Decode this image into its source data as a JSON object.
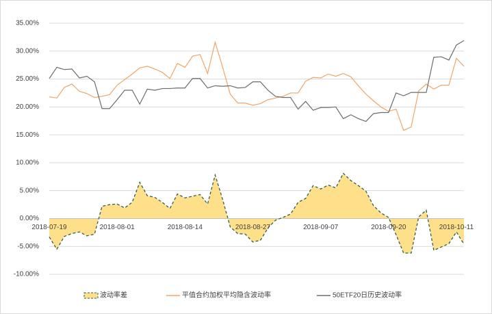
{
  "chart_data": {
    "type": "line",
    "categories": [
      "2018-07-19",
      null,
      null,
      null,
      null,
      null,
      null,
      null,
      null,
      "2018-08-01",
      null,
      null,
      null,
      null,
      null,
      null,
      null,
      null,
      "2018-08-14",
      null,
      null,
      null,
      null,
      null,
      null,
      null,
      null,
      "2018-08-27",
      null,
      null,
      null,
      null,
      null,
      null,
      null,
      null,
      "2018-09-07",
      null,
      null,
      null,
      null,
      null,
      null,
      null,
      null,
      "2018-09-20",
      null,
      null,
      null,
      null,
      null,
      null,
      null,
      null,
      "2018-10-11",
      null
    ],
    "series": [
      {
        "name": "波动率差",
        "type": "area",
        "color": "#ffe08a",
        "line_color": "#2f5f4f",
        "values": [
          -3.3,
          -5.5,
          -3.2,
          -2.7,
          -2.4,
          -3.1,
          -2.8,
          2.2,
          2.5,
          2.6,
          1.9,
          2.9,
          6.5,
          4.1,
          3.8,
          2.9,
          1.8,
          4.4,
          3.7,
          4.0,
          4.3,
          2.6,
          7.8,
          3.4,
          -1.5,
          -2.7,
          -2.8,
          -4.2,
          -3.9,
          -1.7,
          -0.3,
          0.2,
          0.8,
          2.9,
          3.6,
          5.9,
          5.3,
          6.0,
          5.5,
          8.1,
          6.8,
          5.9,
          4.9,
          2.3,
          1.0,
          0.2,
          -2.9,
          -6.2,
          -6.2,
          0.3,
          1.5,
          -5.7,
          -5.1,
          -4.5,
          -2.4,
          -4.6
        ]
      },
      {
        "name": "平值合约加权平均隐含波动率",
        "type": "line",
        "color": "#f0a565",
        "values": [
          21.8,
          21.6,
          23.5,
          24.1,
          22.8,
          22.4,
          21.7,
          21.9,
          22.2,
          23.9,
          24.9,
          25.9,
          27.0,
          27.3,
          26.8,
          26.2,
          25.1,
          27.8,
          27.1,
          29.1,
          29.4,
          26.0,
          31.6,
          27.1,
          22.3,
          20.7,
          20.7,
          20.3,
          20.6,
          21.3,
          21.6,
          21.9,
          22.5,
          22.5,
          24.6,
          25.3,
          25.2,
          25.9,
          25.5,
          26.0,
          25.4,
          23.8,
          22.3,
          21.1,
          20.0,
          19.2,
          19.6,
          15.8,
          16.4,
          22.9,
          24.1,
          23.2,
          23.9,
          23.9,
          28.7,
          27.3
        ]
      },
      {
        "name": "50ETF20日历史波动率",
        "type": "line",
        "color": "#6b6b6b",
        "values": [
          25.1,
          27.1,
          26.7,
          26.8,
          25.2,
          25.5,
          24.5,
          19.7,
          19.7,
          21.3,
          23.0,
          23.0,
          20.5,
          23.2,
          23.0,
          23.3,
          23.3,
          23.4,
          23.4,
          25.1,
          25.1,
          23.4,
          23.8,
          23.7,
          23.8,
          23.4,
          23.5,
          24.5,
          24.5,
          23.0,
          21.9,
          21.7,
          21.7,
          19.6,
          21.0,
          19.4,
          19.9,
          19.9,
          20.0,
          17.9,
          18.6,
          17.9,
          17.4,
          18.8,
          19.0,
          19.0,
          22.5,
          22.0,
          22.6,
          22.6,
          22.6,
          28.9,
          29.0,
          28.4,
          31.1,
          31.9
        ]
      }
    ],
    "ylim": [
      -10,
      35
    ],
    "yticks": [
      {
        "value": -10,
        "label": "-10.00%"
      },
      {
        "value": -5,
        "label": "-5.00%"
      },
      {
        "value": 0,
        "label": "0.00%"
      },
      {
        "value": 5,
        "label": "5.00%"
      },
      {
        "value": 10,
        "label": "10.00%"
      },
      {
        "value": 15,
        "label": "15.00%"
      },
      {
        "value": 20,
        "label": "20.00%"
      },
      {
        "value": 25,
        "label": "25.00%"
      },
      {
        "value": 30,
        "label": "30.00%"
      },
      {
        "value": 35,
        "label": "35.00%"
      }
    ],
    "grid": true,
    "legend": "bottom"
  }
}
